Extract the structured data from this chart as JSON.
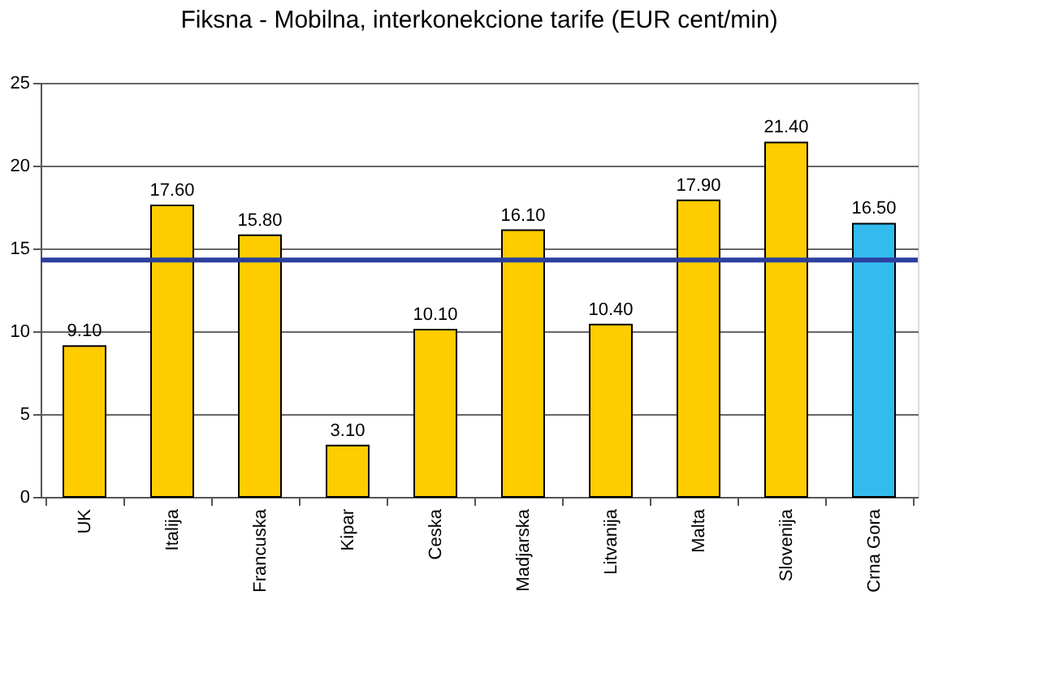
{
  "chart_data": {
    "type": "bar",
    "title": "Fiksna - Mobilna, interkonekcione tarife (EUR cent/min)",
    "categories": [
      "UK",
      "Italija",
      "Francuska",
      "Kipar",
      "Ceska",
      "Madjarska",
      "Litvanija",
      "Malta",
      "Slovenija",
      "Crna Gora"
    ],
    "values": [
      9.1,
      17.6,
      15.8,
      3.1,
      10.1,
      16.1,
      10.4,
      17.9,
      21.4,
      16.5
    ],
    "value_labels": [
      "9.10",
      "17.60",
      "15.80",
      "3.10",
      "10.10",
      "16.10",
      "10.40",
      "17.90",
      "21.40",
      "16.50"
    ],
    "colors": [
      "#ffcc00",
      "#ffcc00",
      "#ffcc00",
      "#ffcc00",
      "#ffcc00",
      "#ffcc00",
      "#ffcc00",
      "#ffcc00",
      "#ffcc00",
      "#33bbee"
    ],
    "ylim": [
      0,
      25
    ],
    "yticks": [
      0,
      5,
      10,
      15,
      20,
      25
    ],
    "grid": "y",
    "ref_lines": [
      {
        "axis": "y",
        "value": 14.3,
        "color": "#2b3f9e"
      }
    ]
  }
}
